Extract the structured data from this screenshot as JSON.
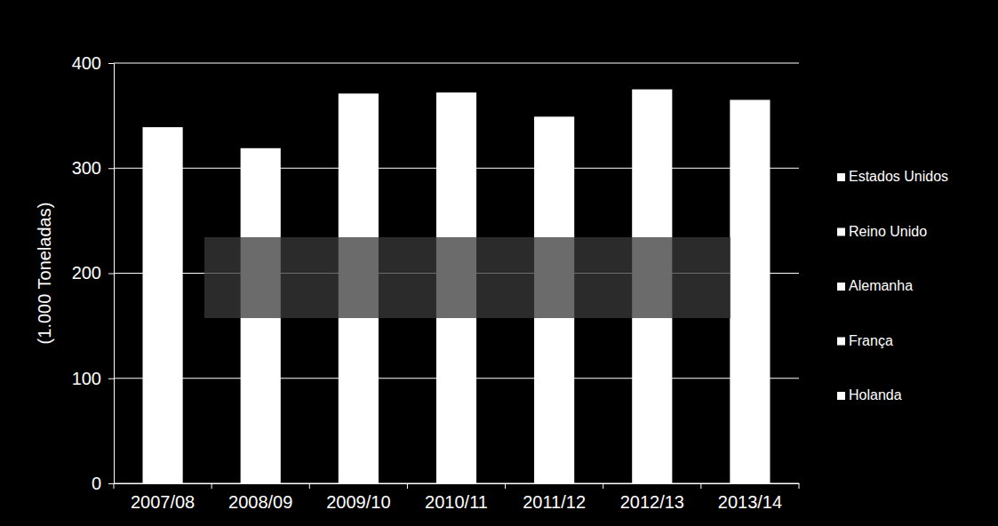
{
  "chart_data": {
    "type": "bar",
    "y_label": "(1.000 Toneladas)",
    "categories": [
      "2007/08",
      "2008/09",
      "2009/10",
      "2010/11",
      "2011/12",
      "2012/13",
      "2013/14"
    ],
    "values": [
      339,
      319,
      371,
      372,
      349,
      375,
      365
    ],
    "color": "#ffffff",
    "legend_labels": [
      "Estados Unidos",
      "Reino Unido",
      "Alemanha",
      "França",
      "Holanda"
    ],
    "ylim": [
      0,
      400
    ],
    "yticks": [
      0,
      100,
      200,
      300,
      400
    ],
    "grid": true
  }
}
